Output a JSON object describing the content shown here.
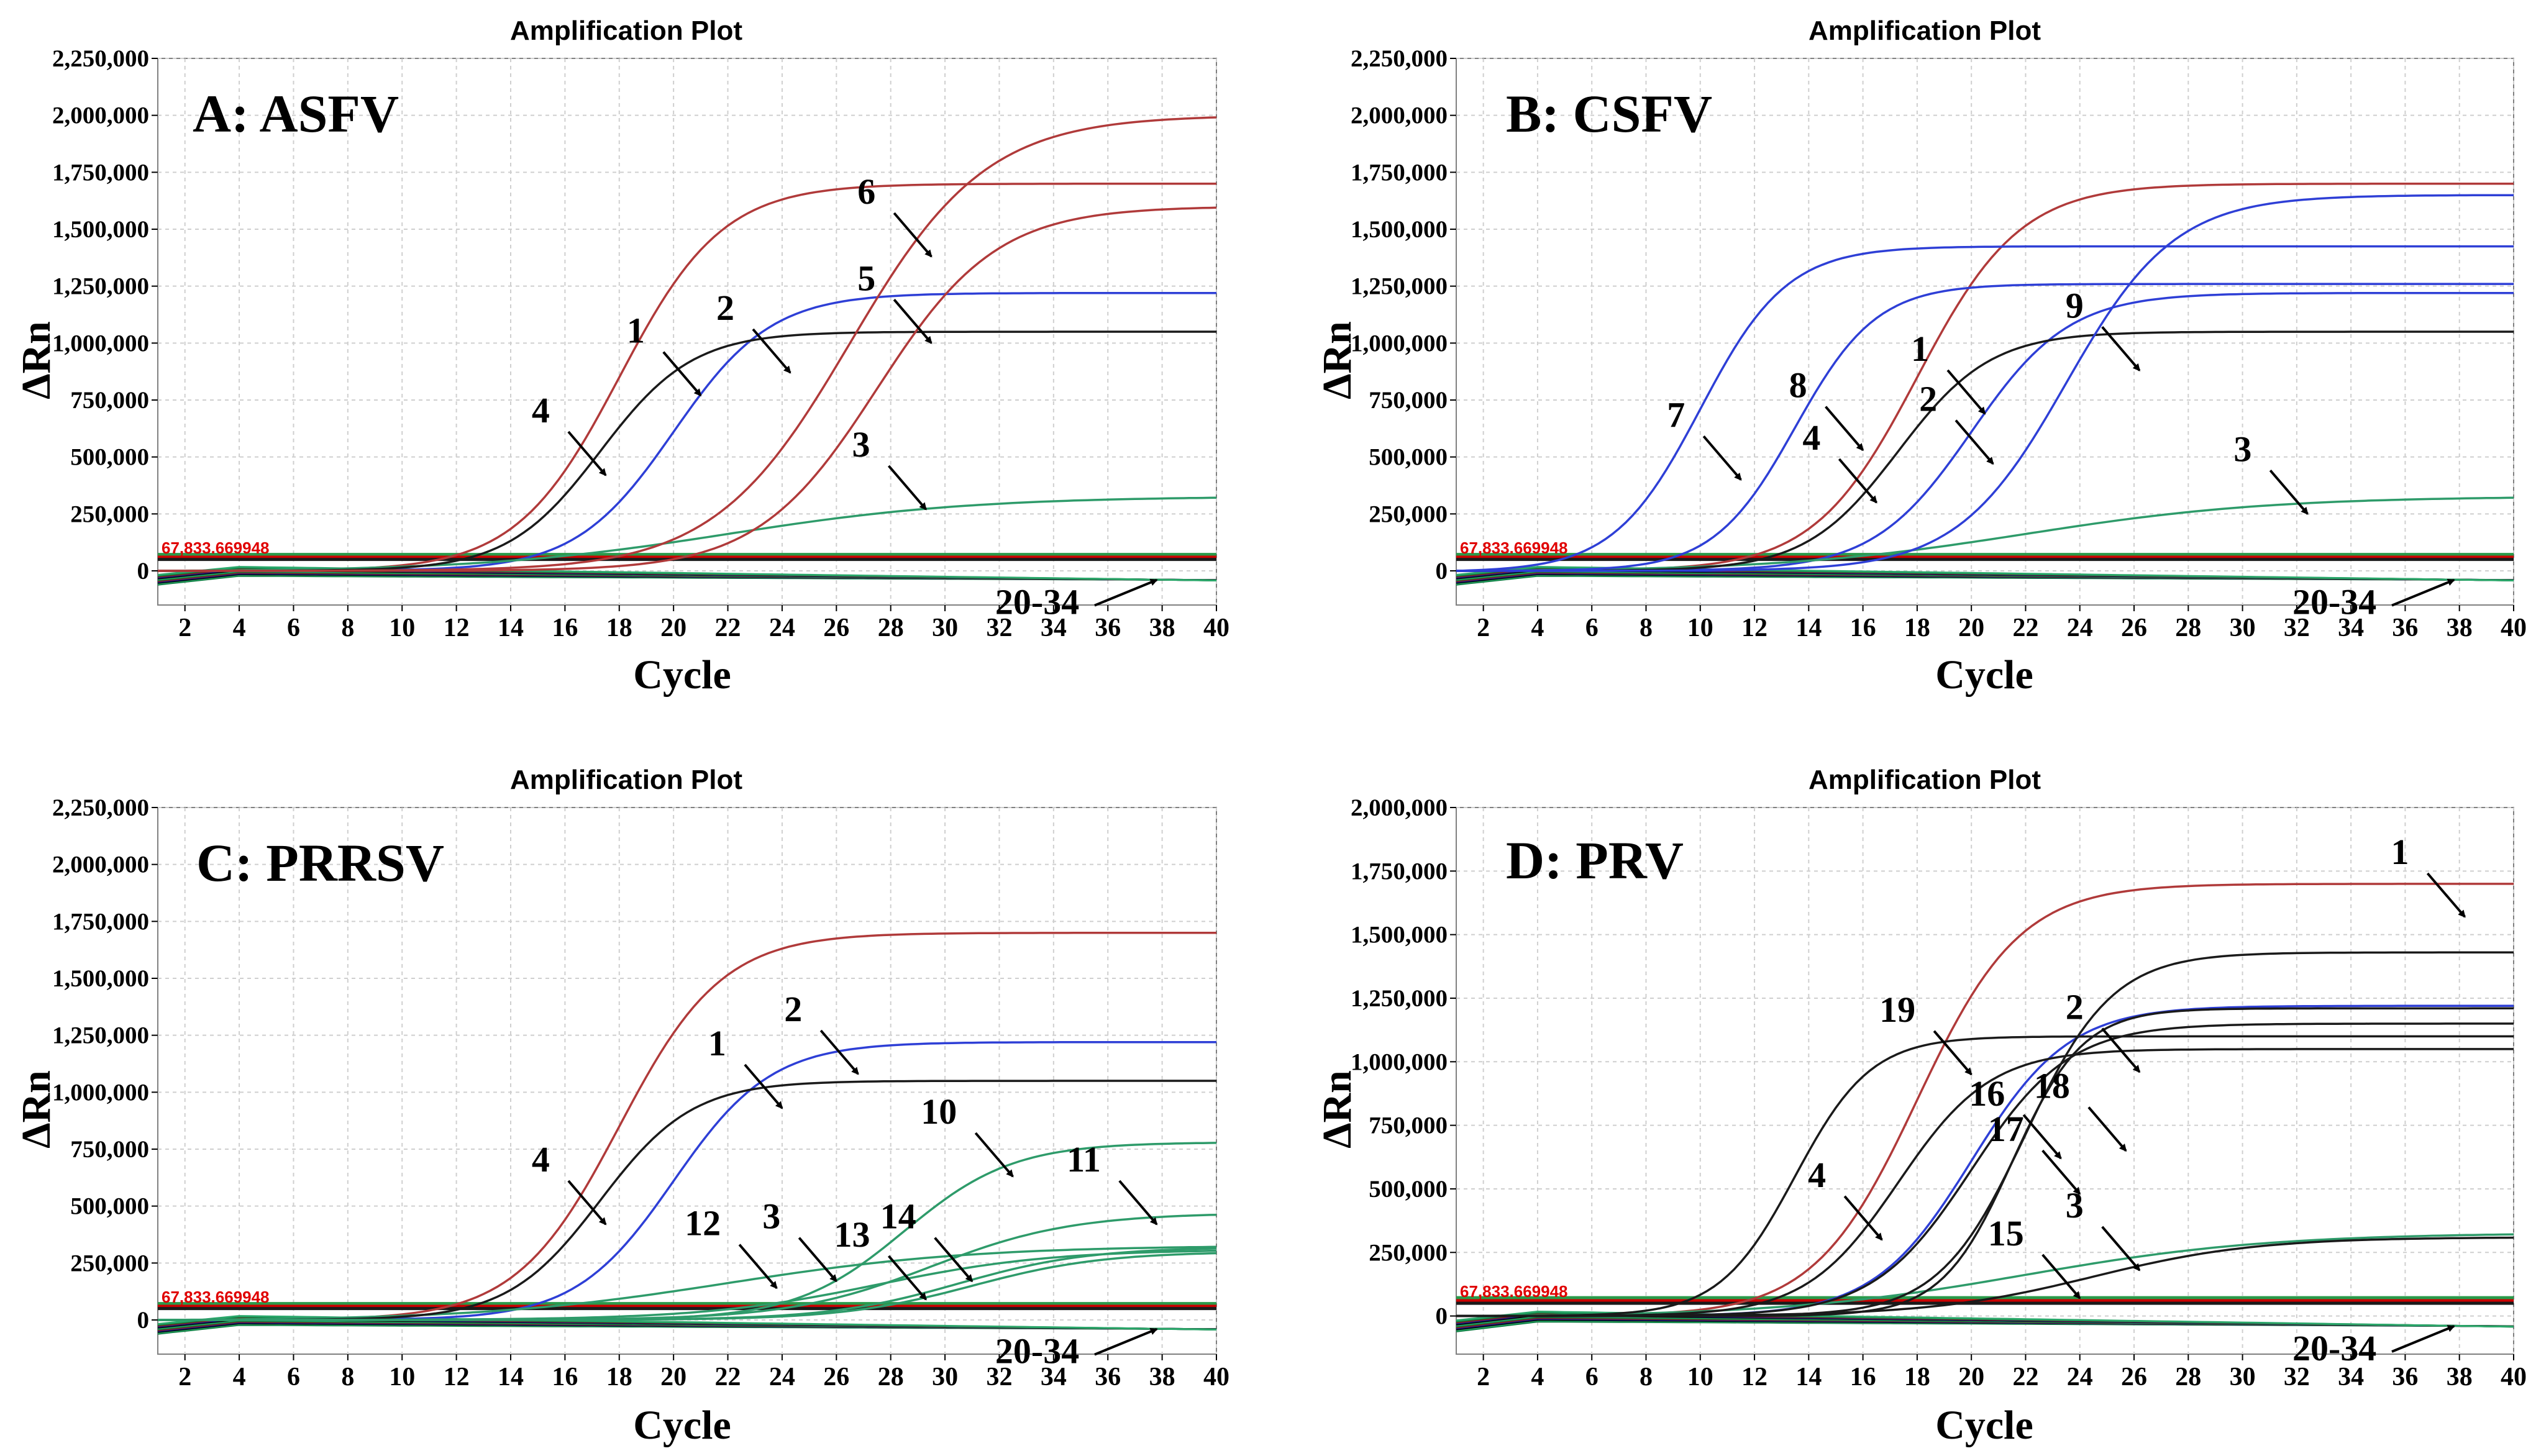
{
  "colors": {
    "red": "#b03a3a",
    "blue": "#2e3fd6",
    "black": "#1a1a1a",
    "green": "#2e9b6a",
    "threshold": "#cc0000",
    "grid": "#cfcfcf"
  },
  "chart_data": [
    {
      "type": "line",
      "panel_label": "A: ASFV",
      "title": "Amplification Plot",
      "xlabel": "Cycle",
      "ylabel": "ΔRn",
      "xlim": [
        1,
        40
      ],
      "ylim": [
        -150000,
        2250000
      ],
      "xticks": [
        2,
        4,
        6,
        8,
        10,
        12,
        14,
        16,
        18,
        20,
        22,
        24,
        26,
        28,
        30,
        32,
        34,
        36,
        38,
        40
      ],
      "yticks": [
        0,
        250000,
        500000,
        750000,
        1000000,
        1250000,
        1500000,
        1750000,
        2000000,
        2250000
      ],
      "ytick_labels": [
        "0",
        "250,000",
        "500,000",
        "750,000",
        "1,000,000",
        "1,250,000",
        "1,500,000",
        "1,750,000",
        "2,000,000",
        "2,250,000"
      ],
      "threshold_text": "67,833.669948",
      "series": [
        {
          "color": "red",
          "ct": 18.0,
          "plateau": 1700000,
          "slope": 1.9
        },
        {
          "color": "blue",
          "ct": 20.0,
          "plateau": 1220000,
          "slope": 1.8
        },
        {
          "color": "green",
          "ct": 22.0,
          "plateau": 330000,
          "slope": 4.5
        },
        {
          "color": "black",
          "ct": 17.3,
          "plateau": 1050000,
          "slope": 1.7
        },
        {
          "color": "red",
          "ct": 27.5,
          "plateau": 1600000,
          "slope": 2.2
        },
        {
          "color": "red",
          "ct": 26.5,
          "plateau": 2000000,
          "slope": 2.5
        }
      ],
      "annotations": [
        {
          "text": "1",
          "x": 21,
          "y": 770000
        },
        {
          "text": "2",
          "x": 24.3,
          "y": 870000
        },
        {
          "text": "3",
          "x": 29.3,
          "y": 270000
        },
        {
          "text": "4",
          "x": 17.5,
          "y": 420000
        },
        {
          "text": "5",
          "x": 29.5,
          "y": 1000000
        },
        {
          "text": "6",
          "x": 29.5,
          "y": 1380000
        },
        {
          "text": "20-34",
          "x": 37.8,
          "y": -40000
        }
      ]
    },
    {
      "type": "line",
      "panel_label": "B: CSFV",
      "title": "Amplification Plot",
      "xlabel": "Cycle",
      "ylabel": "ΔRn",
      "xlim": [
        1,
        40
      ],
      "ylim": [
        -150000,
        2250000
      ],
      "xticks": [
        2,
        4,
        6,
        8,
        10,
        12,
        14,
        16,
        18,
        20,
        22,
        24,
        26,
        28,
        30,
        32,
        34,
        36,
        38,
        40
      ],
      "yticks": [
        0,
        250000,
        500000,
        750000,
        1000000,
        1250000,
        1500000,
        1750000,
        2000000,
        2250000
      ],
      "ytick_labels": [
        "0",
        "250,000",
        "500,000",
        "750,000",
        "1,000,000",
        "1,250,000",
        "1,500,000",
        "1,750,000",
        "2,000,000",
        "2,250,000"
      ],
      "threshold_text": "67,833.669948",
      "series": [
        {
          "color": "red",
          "ct": 18.0,
          "plateau": 1700000,
          "slope": 1.9
        },
        {
          "color": "blue",
          "ct": 20.0,
          "plateau": 1220000,
          "slope": 1.8
        },
        {
          "color": "green",
          "ct": 22.0,
          "plateau": 330000,
          "slope": 4.5
        },
        {
          "color": "black",
          "ct": 17.3,
          "plateau": 1050000,
          "slope": 1.7
        },
        {
          "color": "blue",
          "ct": 10.0,
          "plateau": 1430000,
          "slope": 1.6
        },
        {
          "color": "blue",
          "ct": 13.5,
          "plateau": 1260000,
          "slope": 1.5
        },
        {
          "color": "blue",
          "ct": 23.5,
          "plateau": 1650000,
          "slope": 2.0
        }
      ],
      "annotations": [
        {
          "text": "1",
          "x": 20.5,
          "y": 690000
        },
        {
          "text": "2",
          "x": 20.8,
          "y": 470000
        },
        {
          "text": "3",
          "x": 32.4,
          "y": 250000
        },
        {
          "text": "4",
          "x": 16.5,
          "y": 300000
        },
        {
          "text": "7",
          "x": 11.5,
          "y": 400000
        },
        {
          "text": "8",
          "x": 16.0,
          "y": 530000
        },
        {
          "text": "9",
          "x": 26.2,
          "y": 880000
        },
        {
          "text": "20-34",
          "x": 37.8,
          "y": -40000
        }
      ]
    },
    {
      "type": "line",
      "panel_label": "C: PRRSV",
      "title": "Amplification Plot",
      "xlabel": "Cycle",
      "ylabel": "ΔRn",
      "xlim": [
        1,
        40
      ],
      "ylim": [
        -150000,
        2250000
      ],
      "xticks": [
        2,
        4,
        6,
        8,
        10,
        12,
        14,
        16,
        18,
        20,
        22,
        24,
        26,
        28,
        30,
        32,
        34,
        36,
        38,
        40
      ],
      "yticks": [
        0,
        250000,
        500000,
        750000,
        1000000,
        1250000,
        1500000,
        1750000,
        2000000,
        2250000
      ],
      "ytick_labels": [
        "0",
        "250,000",
        "500,000",
        "750,000",
        "1,000,000",
        "1,250,000",
        "1,500,000",
        "1,750,000",
        "2,000,000",
        "2,250,000"
      ],
      "threshold_text": "67,833.669948",
      "series": [
        {
          "color": "red",
          "ct": 18.0,
          "plateau": 1700000,
          "slope": 1.9
        },
        {
          "color": "blue",
          "ct": 20.0,
          "plateau": 1220000,
          "slope": 1.8
        },
        {
          "color": "green",
          "ct": 22.0,
          "plateau": 330000,
          "slope": 4.5
        },
        {
          "color": "black",
          "ct": 17.3,
          "plateau": 1050000,
          "slope": 1.7
        },
        {
          "color": "green",
          "ct": 28.5,
          "plateau": 780000,
          "slope": 2.0
        },
        {
          "color": "green",
          "ct": 29.5,
          "plateau": 470000,
          "slope": 2.6
        },
        {
          "color": "green",
          "ct": 27.5,
          "plateau": 310000,
          "slope": 3.2
        },
        {
          "color": "green",
          "ct": 30.5,
          "plateau": 320000,
          "slope": 2.4
        },
        {
          "color": "green",
          "ct": 31.0,
          "plateau": 300000,
          "slope": 2.4
        }
      ],
      "annotations": [
        {
          "text": "1",
          "x": 24.0,
          "y": 930000
        },
        {
          "text": "2",
          "x": 26.8,
          "y": 1080000
        },
        {
          "text": "3",
          "x": 26.0,
          "y": 170000
        },
        {
          "text": "4",
          "x": 17.5,
          "y": 420000
        },
        {
          "text": "10",
          "x": 32.5,
          "y": 630000
        },
        {
          "text": "11",
          "x": 37.8,
          "y": 420000
        },
        {
          "text": "12",
          "x": 23.8,
          "y": 140000
        },
        {
          "text": "13",
          "x": 29.3,
          "y": 90000
        },
        {
          "text": "14",
          "x": 31.0,
          "y": 170000
        },
        {
          "text": "20-34",
          "x": 37.8,
          "y": -40000
        }
      ]
    },
    {
      "type": "line",
      "panel_label": "D: PRV",
      "title": "Amplification Plot",
      "xlabel": "Cycle",
      "ylabel": "ΔRn",
      "xlim": [
        1,
        40
      ],
      "ylim": [
        -150000,
        2000000
      ],
      "xticks": [
        2,
        4,
        6,
        8,
        10,
        12,
        14,
        16,
        18,
        20,
        22,
        24,
        26,
        28,
        30,
        32,
        34,
        36,
        38,
        40
      ],
      "yticks": [
        0,
        250000,
        500000,
        750000,
        1000000,
        1250000,
        1500000,
        1750000,
        2000000
      ],
      "ytick_labels": [
        "0",
        "250,000",
        "500,000",
        "750,000",
        "1,000,000",
        "1,250,000",
        "1,500,000",
        "1,750,000",
        "2,000,000"
      ],
      "threshold_text": "67,833.669948",
      "series": [
        {
          "color": "red",
          "ct": 18.0,
          "plateau": 1700000,
          "slope": 1.9
        },
        {
          "color": "blue",
          "ct": 20.0,
          "plateau": 1220000,
          "slope": 1.8
        },
        {
          "color": "green",
          "ct": 22.0,
          "plateau": 330000,
          "slope": 4.5
        },
        {
          "color": "black",
          "ct": 17.3,
          "plateau": 1050000,
          "slope": 1.7
        },
        {
          "color": "black",
          "ct": 24.5,
          "plateau": 310000,
          "slope": 3.0
        },
        {
          "color": "black",
          "ct": 20.0,
          "plateau": 1150000,
          "slope": 1.8
        },
        {
          "color": "black",
          "ct": 21.5,
          "plateau": 1210000,
          "slope": 1.3
        },
        {
          "color": "black",
          "ct": 22.0,
          "plateau": 1430000,
          "slope": 1.6
        },
        {
          "color": "black",
          "ct": 13.5,
          "plateau": 1100000,
          "slope": 1.4
        }
      ],
      "annotations": [
        {
          "text": "1",
          "x": 38.2,
          "y": 1570000
        },
        {
          "text": "2",
          "x": 26.2,
          "y": 960000
        },
        {
          "text": "3",
          "x": 26.2,
          "y": 180000
        },
        {
          "text": "4",
          "x": 16.7,
          "y": 300000
        },
        {
          "text": "15",
          "x": 24.0,
          "y": 70000
        },
        {
          "text": "16",
          "x": 23.3,
          "y": 620000
        },
        {
          "text": "17",
          "x": 24.0,
          "y": 480000
        },
        {
          "text": "18",
          "x": 25.7,
          "y": 650000
        },
        {
          "text": "19",
          "x": 20.0,
          "y": 950000
        },
        {
          "text": "20-34",
          "x": 37.8,
          "y": -40000
        }
      ]
    }
  ]
}
